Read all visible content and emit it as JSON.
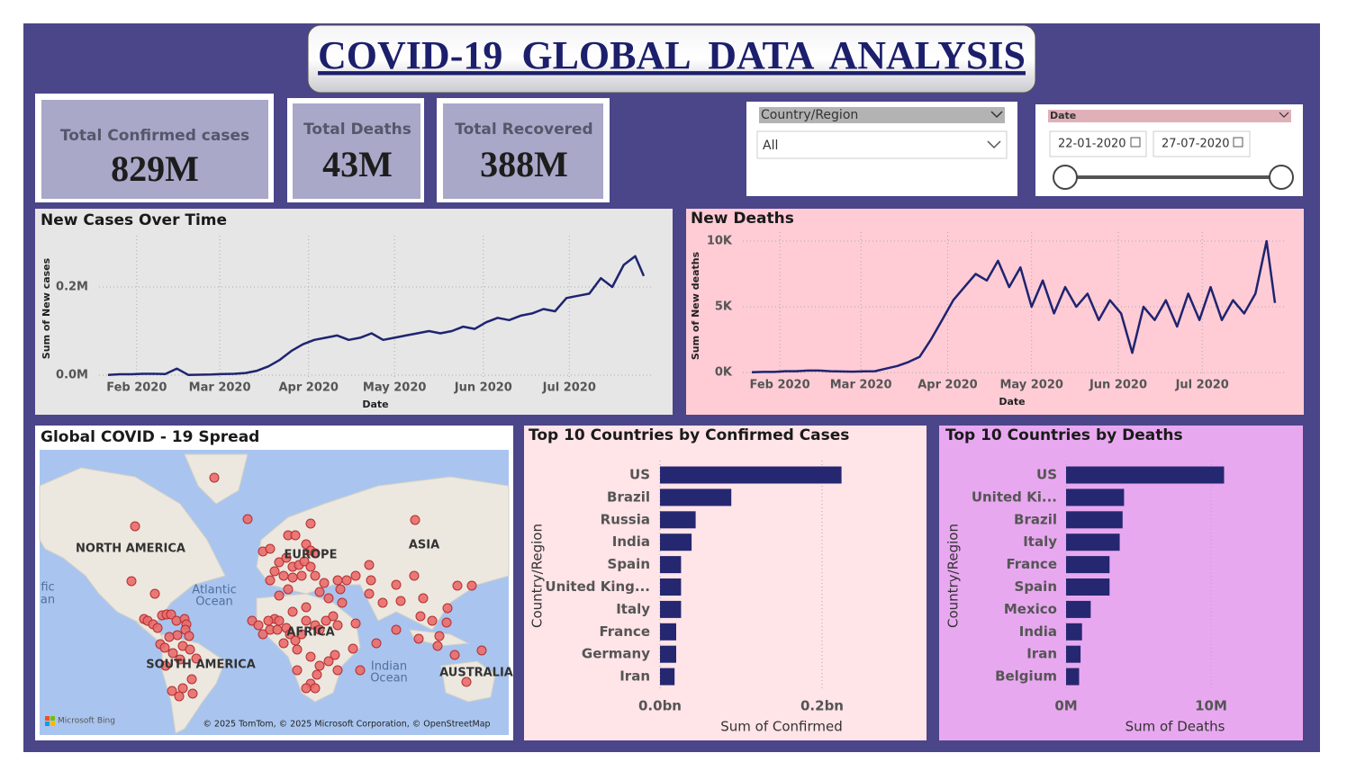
{
  "header": {
    "title": "COVID-19 GLOBAL DATA ANALYSIS"
  },
  "kpis": [
    {
      "label": "Total Confirmed cases",
      "value": "829M"
    },
    {
      "label": "Total Deaths",
      "value": "43M"
    },
    {
      "label": "Total Recovered",
      "value": "388M"
    }
  ],
  "filters": {
    "country": {
      "title": "Country/Region",
      "selection": "All"
    },
    "date": {
      "title": "Date",
      "start": "22-01-2020",
      "end": "27-07-2020"
    }
  },
  "map": {
    "title": "Global COVID - 19 Spread",
    "labels": [
      "NORTH AMERICA",
      "EUROPE",
      "ASIA",
      "AFRICA",
      "SOUTH AMERICA",
      "AUSTRALIA",
      "Atlantic",
      "Ocean",
      "Indian",
      "Ocean",
      "fic",
      "an"
    ],
    "logo": "Microsoft Bing",
    "attribution": "© 2025 TomTom, © 2025 Microsoft Corporation, © OpenStreetMap"
  },
  "chart_data": [
    {
      "type": "line",
      "title": "New Cases Over Time",
      "x_label": "Date",
      "y_label": "Sum of New cases",
      "color": "#1f2470",
      "grid": true,
      "x": [
        "2020-01-22",
        "2020-01-26",
        "2020-01-30",
        "2020-02-03",
        "2020-02-07",
        "2020-02-11",
        "2020-02-15",
        "2020-02-19",
        "2020-02-23",
        "2020-02-27",
        "2020-03-02",
        "2020-03-06",
        "2020-03-10",
        "2020-03-14",
        "2020-03-18",
        "2020-03-22",
        "2020-03-26",
        "2020-03-30",
        "2020-04-03",
        "2020-04-07",
        "2020-04-11",
        "2020-04-15",
        "2020-04-19",
        "2020-04-23",
        "2020-04-27",
        "2020-05-01",
        "2020-05-05",
        "2020-05-09",
        "2020-05-13",
        "2020-05-17",
        "2020-05-21",
        "2020-05-25",
        "2020-05-29",
        "2020-06-02",
        "2020-06-06",
        "2020-06-10",
        "2020-06-14",
        "2020-06-18",
        "2020-06-22",
        "2020-06-26",
        "2020-06-30",
        "2020-07-04",
        "2020-07-08",
        "2020-07-12",
        "2020-07-16",
        "2020-07-20",
        "2020-07-24",
        "2020-07-27"
      ],
      "values": [
        500,
        2000,
        2000,
        3000,
        3000,
        2500,
        15000,
        600,
        1000,
        1500,
        2500,
        3000,
        5000,
        10000,
        20000,
        35000,
        55000,
        70000,
        80000,
        85000,
        90000,
        80000,
        85000,
        95000,
        80000,
        85000,
        90000,
        95000,
        100000,
        95000,
        100000,
        110000,
        105000,
        120000,
        130000,
        125000,
        135000,
        140000,
        150000,
        145000,
        175000,
        180000,
        185000,
        220000,
        200000,
        250000,
        270000,
        225000
      ],
      "xlim": [
        "2020-01-22",
        "2020-07-27"
      ],
      "xticks": [
        {
          "value": "2020-02-01",
          "label": "Feb 2020"
        },
        {
          "value": "2020-03-01",
          "label": "Mar 2020"
        },
        {
          "value": "2020-04-01",
          "label": "Apr 2020"
        },
        {
          "value": "2020-05-01",
          "label": "May 2020"
        },
        {
          "value": "2020-06-01",
          "label": "Jun 2020"
        },
        {
          "value": "2020-07-01",
          "label": "Jul 2020"
        }
      ],
      "ylim": [
        -40000,
        300000
      ],
      "yticks": [
        {
          "value": 0,
          "label": "0.0M"
        },
        {
          "value": 200000,
          "label": "0.2M"
        }
      ]
    },
    {
      "type": "line",
      "title": "New Deaths",
      "x_label": "Date",
      "y_label": "Sum of New deaths",
      "color": "#1f2470",
      "grid": true,
      "x": [
        "2020-01-22",
        "2020-01-26",
        "2020-01-30",
        "2020-02-03",
        "2020-02-07",
        "2020-02-11",
        "2020-02-15",
        "2020-02-19",
        "2020-02-23",
        "2020-02-27",
        "2020-03-02",
        "2020-03-06",
        "2020-03-10",
        "2020-03-14",
        "2020-03-18",
        "2020-03-22",
        "2020-03-26",
        "2020-03-30",
        "2020-04-03",
        "2020-04-07",
        "2020-04-11",
        "2020-04-15",
        "2020-04-19",
        "2020-04-23",
        "2020-04-27",
        "2020-05-01",
        "2020-05-05",
        "2020-05-09",
        "2020-05-13",
        "2020-05-17",
        "2020-05-21",
        "2020-05-25",
        "2020-05-29",
        "2020-06-02",
        "2020-06-06",
        "2020-06-10",
        "2020-06-14",
        "2020-06-18",
        "2020-06-22",
        "2020-06-26",
        "2020-06-30",
        "2020-07-04",
        "2020-07-08",
        "2020-07-12",
        "2020-07-16",
        "2020-07-20",
        "2020-07-24",
        "2020-07-27"
      ],
      "values": [
        20,
        50,
        50,
        100,
        100,
        150,
        150,
        100,
        80,
        70,
        90,
        100,
        300,
        500,
        800,
        1200,
        2500,
        4000,
        5500,
        6500,
        7500,
        7000,
        8500,
        6500,
        8000,
        5000,
        7000,
        4500,
        6500,
        5000,
        6000,
        4000,
        5500,
        4500,
        1500,
        5000,
        4000,
        5500,
        3500,
        6000,
        4000,
        6500,
        4000,
        5500,
        4500,
        6000,
        10000,
        5300
      ],
      "xlim": [
        "2020-01-22",
        "2020-07-27"
      ],
      "xticks": [
        {
          "value": "2020-02-01",
          "label": "Feb 2020"
        },
        {
          "value": "2020-03-01",
          "label": "Mar 2020"
        },
        {
          "value": "2020-04-01",
          "label": "Apr 2020"
        },
        {
          "value": "2020-05-01",
          "label": "May 2020"
        },
        {
          "value": "2020-06-01",
          "label": "Jun 2020"
        },
        {
          "value": "2020-07-01",
          "label": "Jul 2020"
        }
      ],
      "ylim": [
        -1500,
        11000
      ],
      "yticks": [
        {
          "value": 0,
          "label": "0K"
        },
        {
          "value": 5000,
          "label": "5K"
        },
        {
          "value": 10000,
          "label": "10K"
        }
      ]
    },
    {
      "type": "bar",
      "orientation": "horizontal",
      "title": "Top 10 Countries by Confirmed Cases",
      "x_label": "Sum of Confirmed",
      "y_label": "Country/Region",
      "color": "#252870",
      "grid": true,
      "categories": [
        "US",
        "Brazil",
        "Russia",
        "India",
        "Spain",
        "United King...",
        "Italy",
        "France",
        "Germany",
        "Iran"
      ],
      "values": [
        224000000,
        88000000,
        44000000,
        39000000,
        26000000,
        26000000,
        26000000,
        20000000,
        20000000,
        18000000
      ],
      "xlim": [
        0,
        300000000
      ],
      "xticks": [
        {
          "value": 0,
          "label": "0.0bn"
        },
        {
          "value": 200000000,
          "label": "0.2bn"
        }
      ]
    },
    {
      "type": "bar",
      "orientation": "horizontal",
      "title": "Top 10 Countries by Deaths",
      "x_label": "Sum of Deaths",
      "y_label": "Country/Region",
      "color": "#252870",
      "grid": true,
      "categories": [
        "US",
        "United Ki...",
        "Brazil",
        "Italy",
        "France",
        "Spain",
        "Mexico",
        "India",
        "Iran",
        "Belgium"
      ],
      "values": [
        10900000,
        4000000,
        3900000,
        3700000,
        3000000,
        3000000,
        1700000,
        1100000,
        1000000,
        900000
      ],
      "xlim": [
        0,
        15000000
      ],
      "xticks": [
        {
          "value": 0,
          "label": "0M"
        },
        {
          "value": 10000000,
          "label": "10M"
        }
      ]
    }
  ]
}
